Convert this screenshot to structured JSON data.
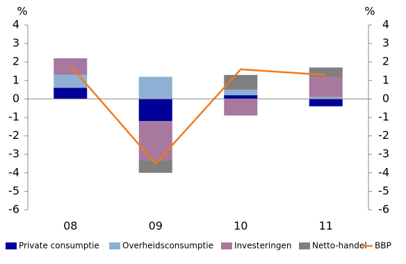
{
  "chart_data": {
    "type": "bar",
    "y_unit": "%",
    "y2_unit": "%",
    "categories": [
      "08",
      "09",
      "10",
      "11"
    ],
    "series": [
      {
        "name": "Private consumptie",
        "color": "#000099",
        "values": [
          0.6,
          -1.2,
          0.2,
          -0.4
        ]
      },
      {
        "name": "Overheidsconsumptie",
        "color": "#8eb0d4",
        "values": [
          0.7,
          1.2,
          0.3,
          0.1
        ]
      },
      {
        "name": "Investeringen",
        "color": "#a8789e",
        "values": [
          0.9,
          -2.1,
          -0.9,
          1.1
        ]
      },
      {
        "name": "Netto-handel",
        "color": "#7f7f7f",
        "values": [
          0,
          -0.7,
          0.8,
          0.5
        ]
      },
      {
        "name": "BBP",
        "color": "#f07a1e",
        "type": "line",
        "values": [
          1.8,
          -3.5,
          1.6,
          1.3
        ]
      }
    ],
    "ylim": [
      -6,
      4
    ],
    "yticks": [
      -6,
      -5,
      -4,
      -3,
      -2,
      -1,
      0,
      1,
      2,
      3,
      4
    ],
    "y2lim": [
      -6,
      4
    ],
    "y2ticks": [
      -6,
      -5,
      -4,
      -3,
      -2,
      -1,
      0,
      1,
      2,
      3,
      4
    ],
    "legend": "bottom"
  }
}
